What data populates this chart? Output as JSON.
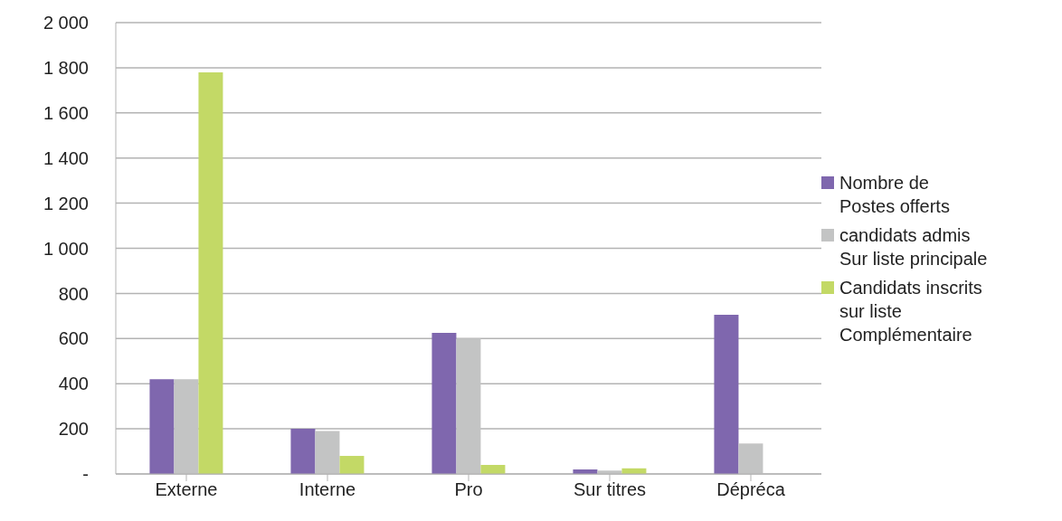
{
  "chart_data": {
    "type": "bar",
    "categories": [
      "Externe",
      "Interne",
      "Pro",
      "Sur titres",
      "Dépréca"
    ],
    "series": [
      {
        "name": "Nombre de\nPostes offerts",
        "color": "#7f67ae",
        "values": [
          420,
          200,
          625,
          20,
          705
        ]
      },
      {
        "name": "candidats admis\nSur liste principale",
        "color": "#c3c4c4",
        "values": [
          420,
          190,
          600,
          15,
          135
        ]
      },
      {
        "name": "Candidats inscrits\nsur liste\nComplémentaire",
        "color": "#c3d966",
        "values": [
          1780,
          80,
          40,
          25,
          null
        ]
      }
    ],
    "ylim": [
      0,
      2000
    ],
    "yticks": [
      {
        "value": 0,
        "label": "-"
      },
      200,
      400,
      600,
      800,
      {
        "value": 1000,
        "label": "1 000"
      },
      {
        "value": 1200,
        "label": "1 200"
      },
      {
        "value": 1400,
        "label": "1 400"
      },
      {
        "value": 1600,
        "label": "1 600"
      },
      {
        "value": 1800,
        "label": "1 800"
      },
      {
        "value": 2000,
        "label": "2 000"
      }
    ],
    "grid": "y",
    "legend": "right"
  }
}
